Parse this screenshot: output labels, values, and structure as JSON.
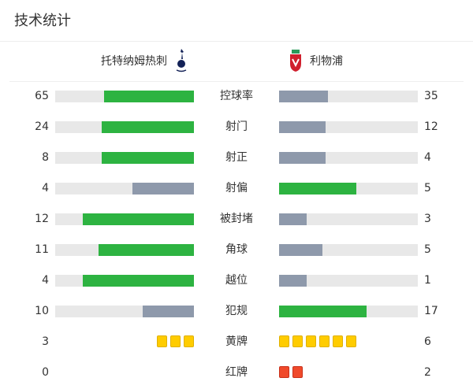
{
  "title": "技术统计",
  "home": {
    "name": "托特纳姆热刺",
    "logo": "tottenham-crest"
  },
  "away": {
    "name": "利物浦",
    "logo": "liverpool-crest"
  },
  "colors": {
    "leader": "#2db341",
    "trailer": "#8e99ab",
    "yellow": "#ffcc00",
    "red": "#f04a2b"
  },
  "stats": [
    {
      "label": "控球率",
      "home": "65",
      "away": "35"
    },
    {
      "label": "射门",
      "home": "24",
      "away": "12"
    },
    {
      "label": "射正",
      "home": "8",
      "away": "4"
    },
    {
      "label": "射偏",
      "home": "4",
      "away": "5"
    },
    {
      "label": "被封堵",
      "home": "12",
      "away": "3"
    },
    {
      "label": "角球",
      "home": "11",
      "away": "5"
    },
    {
      "label": "越位",
      "home": "4",
      "away": "1"
    },
    {
      "label": "犯规",
      "home": "10",
      "away": "17"
    }
  ],
  "cards": [
    {
      "label": "黄牌",
      "home": "3",
      "away": "6",
      "type": "yellow"
    },
    {
      "label": "红牌",
      "home": "0",
      "away": "2",
      "type": "red"
    }
  ]
}
